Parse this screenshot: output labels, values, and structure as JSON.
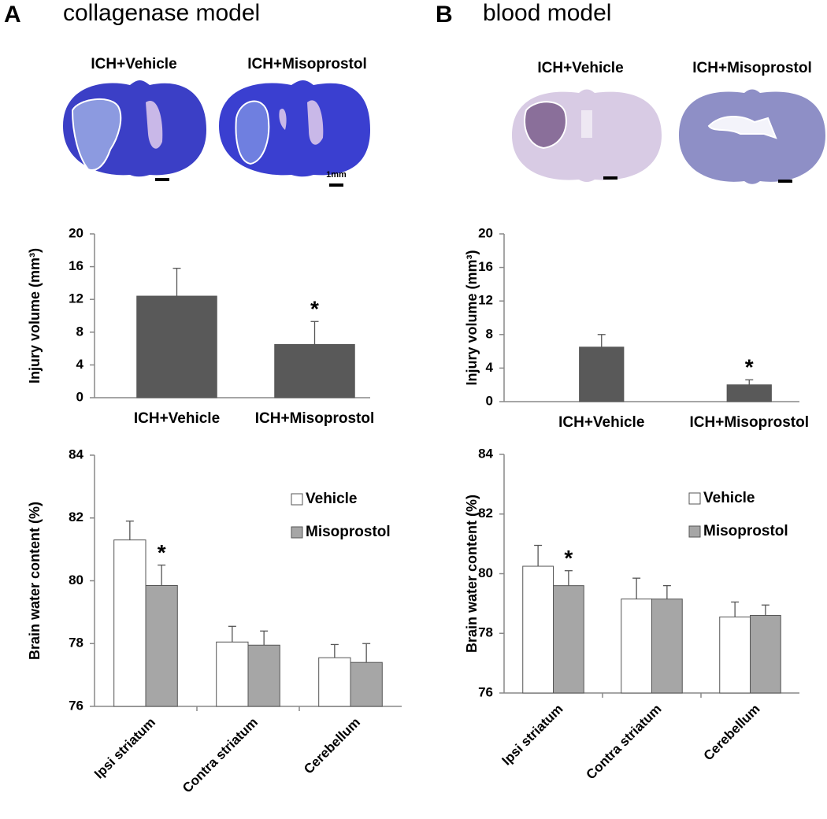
{
  "panels": [
    {
      "letter": "A",
      "title": "collagenase model",
      "image_labels": [
        "ICH+Vehicle",
        "ICH+Misoprostol"
      ],
      "scale_label": "1mm"
    },
    {
      "letter": "B",
      "title": "blood model",
      "image_labels": [
        "ICH+Vehicle",
        "ICH+Misoprostol"
      ]
    }
  ],
  "chart_data": [
    {
      "type": "bar",
      "ylabel": "Injury volume (mm³)",
      "categories": [
        "ICH+Vehicle",
        "ICH+Misoprostol"
      ],
      "values": [
        12.4,
        6.5
      ],
      "errors": [
        3.4,
        2.8
      ],
      "color": "#595959",
      "ylim": [
        0,
        20
      ],
      "yticks": [
        0,
        4,
        8,
        12,
        16,
        20
      ],
      "annotations": [
        {
          "text": "*",
          "x": "ICH+Misoprostol"
        }
      ]
    },
    {
      "type": "bar",
      "ylabel": "Injury volume (mm³)",
      "categories": [
        "ICH+Vehicle",
        "ICH+Misoprostol"
      ],
      "values": [
        6.5,
        2.0
      ],
      "errors": [
        1.5,
        0.6
      ],
      "color": "#595959",
      "ylim": [
        0,
        20
      ],
      "yticks": [
        0,
        4,
        8,
        12,
        16,
        20
      ],
      "annotations": [
        {
          "text": "*",
          "x": "ICH+Misoprostol"
        }
      ]
    },
    {
      "type": "bar",
      "ylabel": "Brain water content (%)",
      "categories": [
        "Ipsi striatum",
        "Contra striatum",
        "Cerebellum"
      ],
      "series": [
        {
          "name": "Vehicle",
          "color": "#ffffff",
          "values": [
            81.3,
            78.05,
            77.55
          ],
          "errors": [
            0.6,
            0.5,
            0.42
          ]
        },
        {
          "name": "Misoprostol",
          "color": "#a6a6a6",
          "values": [
            79.85,
            77.95,
            77.4
          ],
          "errors": [
            0.65,
            0.45,
            0.6
          ]
        }
      ],
      "ylim": [
        76,
        84
      ],
      "yticks": [
        76,
        78,
        80,
        82,
        84
      ],
      "legend": "upper right",
      "annotations": [
        {
          "text": "*",
          "x": "Ipsi striatum",
          "series": "Misoprostol"
        }
      ]
    },
    {
      "type": "bar",
      "ylabel": "Brain water content (%)",
      "categories": [
        "Ipsi striatum",
        "Contra striatum",
        "Cerebellum"
      ],
      "series": [
        {
          "name": "Vehicle",
          "color": "#ffffff",
          "values": [
            80.25,
            79.15,
            78.55
          ],
          "errors": [
            0.7,
            0.7,
            0.5
          ]
        },
        {
          "name": "Misoprostol",
          "color": "#a6a6a6",
          "values": [
            79.6,
            79.15,
            78.6
          ],
          "errors": [
            0.5,
            0.45,
            0.35
          ]
        }
      ],
      "ylim": [
        76,
        84
      ],
      "yticks": [
        76,
        78,
        80,
        82,
        84
      ],
      "legend": "upper right",
      "annotations": [
        {
          "text": "*",
          "x": "Ipsi striatum",
          "series": "Misoprostol"
        }
      ]
    }
  ]
}
